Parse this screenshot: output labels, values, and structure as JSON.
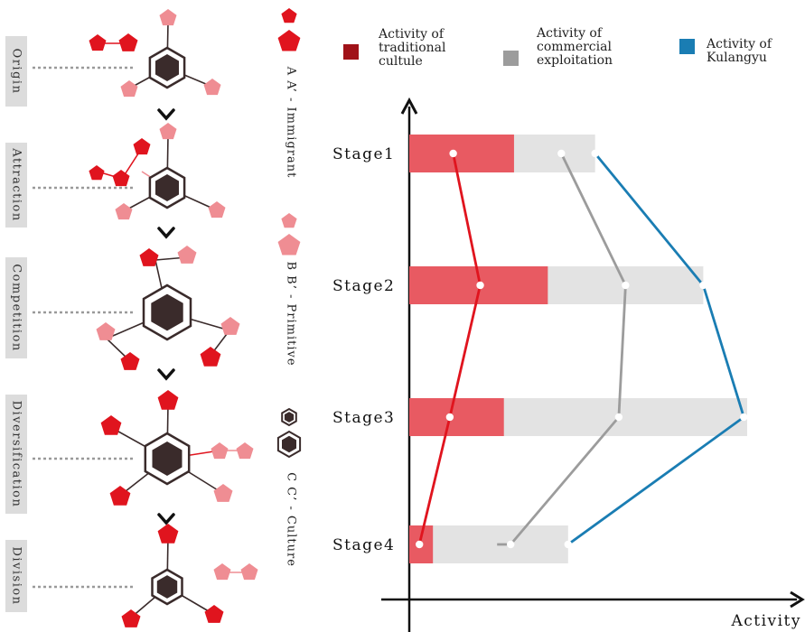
{
  "process_steps": [
    {
      "label": "Origin"
    },
    {
      "label": "Attraction"
    },
    {
      "label": "Competition"
    },
    {
      "label": "Diversification"
    },
    {
      "label": "Division"
    }
  ],
  "key": {
    "immigrant": "A A’ - Immigrant",
    "primitive": "B B’ - Primitive",
    "culture": "C C’ - Culture"
  },
  "colors": {
    "immigrant": "#e0141e",
    "primitive": "#ef8d93",
    "culture": "#3a2b2b",
    "traditional": "#a01218",
    "commercial": "#9c9c9c",
    "kulangyu": "#1a7db3",
    "bar_red": "#e85a62",
    "bar_gray": "#e3e3e3"
  },
  "legend": [
    {
      "label": "Activity of traditional cultule",
      "lines": [
        "Activity of",
        "traditional",
        "cultule"
      ],
      "color_key": "traditional"
    },
    {
      "label": "Activity of commercial exploitation",
      "lines": [
        "Activity of",
        "commercial",
        "exploitation"
      ],
      "color_key": "commercial"
    },
    {
      "label": "Activity of Kulangyu",
      "lines": [
        "Activity of",
        "Kulangyu"
      ],
      "color_key": "kulangyu"
    }
  ],
  "chart_data": {
    "type": "bar",
    "orientation": "horizontal",
    "categories": [
      "Stage1",
      "Stage2",
      "Stage3",
      "Stage4"
    ],
    "xlabel": "Activity",
    "ylabel": "",
    "xlim": [
      0,
      100
    ],
    "stacked_bars": [
      {
        "name": "traditional",
        "values": [
          31,
          41,
          28,
          7
        ]
      },
      {
        "name": "total",
        "values": [
          55,
          87,
          100,
          47
        ]
      }
    ],
    "series": [
      {
        "name": "Activity of traditional cultule",
        "values": [
          13,
          21,
          12,
          3
        ]
      },
      {
        "name": "Activity of commercial exploitation",
        "values": [
          45,
          64,
          62,
          30
        ]
      },
      {
        "name": "Activity of Kulangyu",
        "values": [
          55,
          87,
          99,
          47
        ]
      }
    ],
    "series_start": [
      null,
      null,
      null,
      26
    ]
  }
}
